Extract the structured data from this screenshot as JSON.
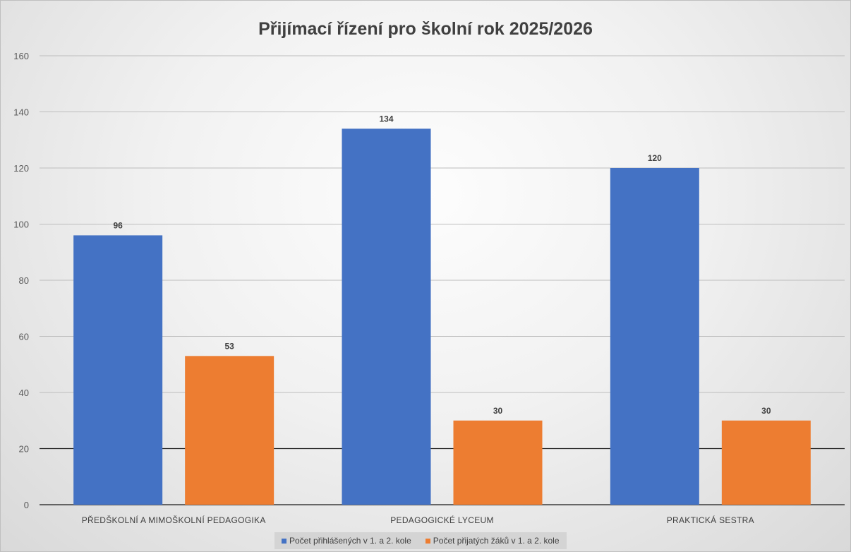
{
  "chart_data": {
    "type": "bar",
    "title": "Přijímací řízení pro školní rok 2025/2026",
    "categories": [
      "PŘEDŠKOLNÍ A MIMOŠKOLNÍ PEDAGOGIKA",
      "PEDAGOGICKÉ LYCEUM",
      "PRAKTICKÁ SESTRA"
    ],
    "series": [
      {
        "name": "Počet přihlášených v 1. a 2. kole",
        "values": [
          96,
          134,
          120
        ],
        "color": "#4472C4"
      },
      {
        "name": "Počet přijatých žáků v 1. a 2. kole",
        "values": [
          53,
          30,
          30
        ],
        "color": "#ED7D31"
      }
    ],
    "ylim": [
      0,
      160
    ],
    "yticks": [
      "0",
      "20",
      "40",
      "60",
      "80",
      "100",
      "120",
      "140",
      "160"
    ],
    "xlabel": "",
    "ylabel": "",
    "grid": true,
    "legend_position": "bottom",
    "data_labels": true
  }
}
